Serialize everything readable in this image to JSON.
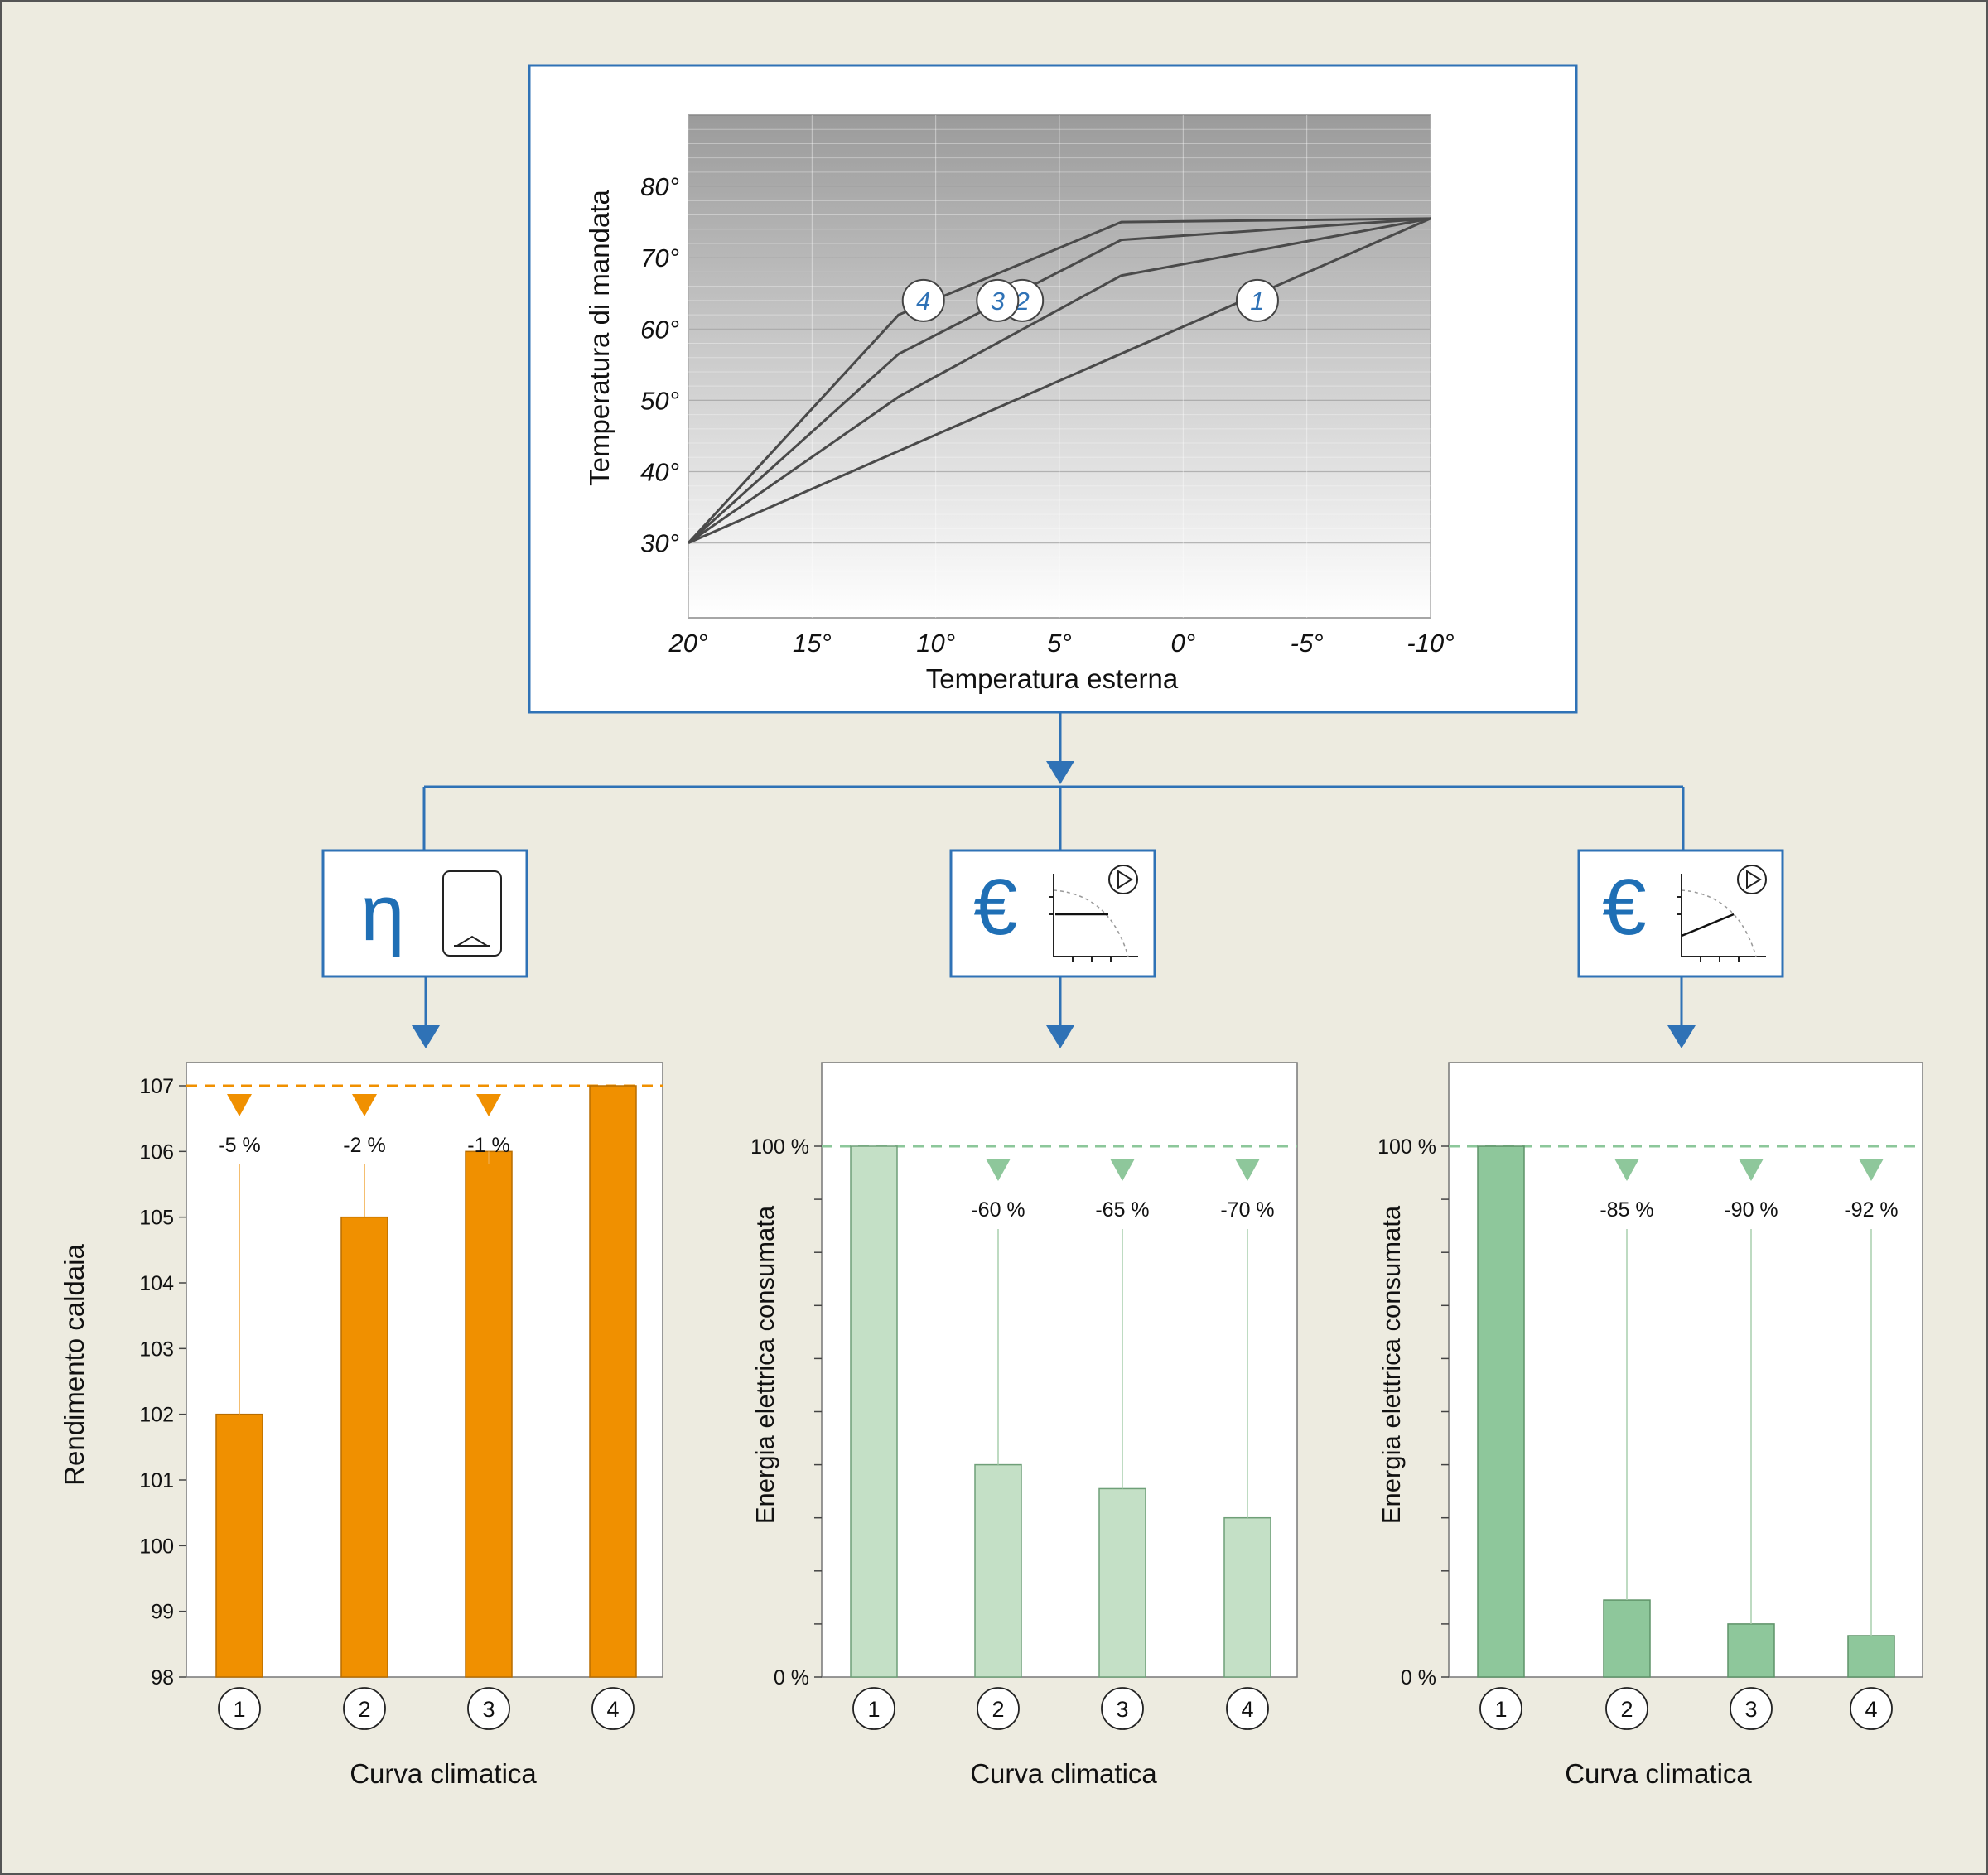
{
  "colors": {
    "background": "#edebe0",
    "frame_blue": "#2f72b6",
    "icon_blue": "#1f6fb5",
    "curve_line": "#4a4a4a",
    "orange": "#f09000",
    "light_green": "#c4e0c6",
    "mid_green": "#8ec79b",
    "green_dash": "#8cc79a"
  },
  "icons": [
    "eta-icon",
    "boiler-icon",
    "euro-icon",
    "pump-curve-constant-icon",
    "pump-curve-proportional-icon",
    "down-arrow-icon"
  ],
  "chart_data": [
    {
      "id": "climatic-curves",
      "type": "line",
      "xlabel": "Temperatura esterna",
      "ylabel": "Temperatura di mandata",
      "xlim": [
        20,
        -10
      ],
      "ylim": [
        19.5,
        90
      ],
      "x_ticks": [
        20,
        15,
        10,
        5,
        0,
        -5,
        -10
      ],
      "x_tick_labels": [
        "20°",
        "15°",
        "10°",
        "5°",
        "0°",
        "-5°",
        "-10°"
      ],
      "y_ticks": [
        30,
        40,
        50,
        60,
        70,
        80
      ],
      "y_tick_labels": [
        "30°",
        "40°",
        "50°",
        "60°",
        "70°",
        "80°"
      ],
      "grid": true,
      "background": "vertical gradient, dark grey top to white bottom",
      "series": [
        {
          "name": "1",
          "x": [
            20,
            -10
          ],
          "y": [
            30,
            75.5
          ],
          "label_at": [
            -3,
            64
          ]
        },
        {
          "name": "2",
          "x": [
            20,
            11.5,
            2.5,
            -10
          ],
          "y": [
            30,
            50.5,
            67.5,
            75.5
          ],
          "label_at": [
            6.5,
            64
          ]
        },
        {
          "name": "3",
          "x": [
            20,
            11.5,
            2.5,
            -10
          ],
          "y": [
            30,
            56.5,
            72.5,
            75.5
          ],
          "label_at": [
            7.5,
            64
          ]
        },
        {
          "name": "4",
          "x": [
            20,
            11.5,
            2.5,
            -10
          ],
          "y": [
            30,
            62,
            75,
            75.5
          ],
          "label_at": [
            10.5,
            64
          ]
        }
      ]
    },
    {
      "id": "boiler-efficiency",
      "type": "bar",
      "categories": [
        "1",
        "2",
        "3",
        "4"
      ],
      "values": [
        102,
        105,
        106,
        107
      ],
      "xlabel": "Curva climatica",
      "ylabel": "Rendimento caldaia",
      "ylim": [
        98,
        107
      ],
      "y_ticks": [
        98,
        99,
        100,
        101,
        102,
        103,
        104,
        105,
        106,
        107
      ],
      "y_tick_labels": [
        "98",
        "99",
        "100",
        "101",
        "102",
        "103",
        "104",
        "105",
        "106",
        "107"
      ],
      "reference_value": 107,
      "annotations": [
        "-5 %",
        "-2 %",
        "-1 %",
        ""
      ],
      "bar_color": "#f09000"
    },
    {
      "id": "pump-energy-constant",
      "type": "bar",
      "categories": [
        "1",
        "2",
        "3",
        "4"
      ],
      "values": [
        100,
        40,
        35.5,
        30
      ],
      "xlabel": "Curva climatica",
      "ylabel": "Energia elettrica consumata",
      "ylim": [
        0,
        100
      ],
      "y_ticks": [
        0,
        100
      ],
      "y_tick_labels": [
        "0 %",
        "100 %"
      ],
      "minor_ticks": 10,
      "reference_value": 100,
      "annotations": [
        "",
        "-60 %",
        "-65 %",
        "-70 %"
      ],
      "bar_color": "#c4e0c6"
    },
    {
      "id": "pump-energy-proportional",
      "type": "bar",
      "categories": [
        "1",
        "2",
        "3",
        "4"
      ],
      "values": [
        100,
        14.5,
        10,
        7.8
      ],
      "xlabel": "Curva climatica",
      "ylabel": "Energia elettrica consumata",
      "ylim": [
        0,
        100
      ],
      "y_ticks": [
        0,
        100
      ],
      "y_tick_labels": [
        "0 %",
        "100 %"
      ],
      "minor_ticks": 10,
      "reference_value": 100,
      "annotations": [
        "",
        "-85 %",
        "-90 %",
        "-92 %"
      ],
      "bar_color": "#8ec79b"
    }
  ]
}
